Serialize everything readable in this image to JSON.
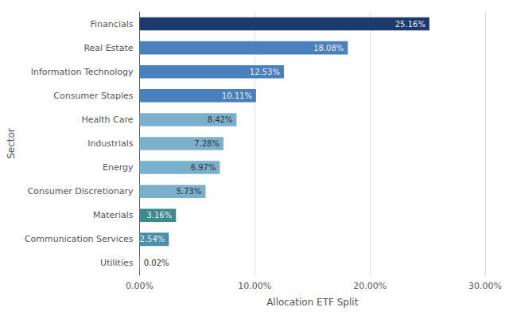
{
  "chart_data": {
    "type": "bar",
    "orientation": "horizontal",
    "categories": [
      "Utilities",
      "Communication Services",
      "Materials",
      "Consumer Discretionary",
      "Energy",
      "Industrials",
      "Health Care",
      "Consumer Staples",
      "Information Technology",
      "Real Estate",
      "Financials"
    ],
    "values": [
      0.02,
      2.54,
      3.16,
      5.73,
      6.97,
      7.28,
      8.42,
      10.11,
      12.53,
      18.08,
      25.16
    ],
    "value_labels": [
      "0.02%",
      "2.54%",
      "3.16%",
      "5.73%",
      "6.97%",
      "7.28%",
      "8.42%",
      "10.11%",
      "12.53%",
      "18.08%",
      "25.16%"
    ],
    "colors": [
      "#d0e8f5",
      "#4a8fa8",
      "#3d8a8c",
      "#7ab0cc",
      "#7ab0cc",
      "#7ab0cc",
      "#7ab0cc",
      "#4a80bc",
      "#4a80bc",
      "#4a80bc",
      "#1c3a6e"
    ],
    "xlabel": "Allocation ETF Split",
    "ylabel": "Sector",
    "xlim": [
      0,
      30
    ],
    "xticks": [
      {
        "value": 0,
        "label": "0.00%"
      },
      {
        "value": 10,
        "label": "10.00%"
      },
      {
        "value": 20,
        "label": "20.00%"
      },
      {
        "value": 30,
        "label": "30.00%"
      }
    ],
    "grid": true,
    "data_labels": true
  }
}
